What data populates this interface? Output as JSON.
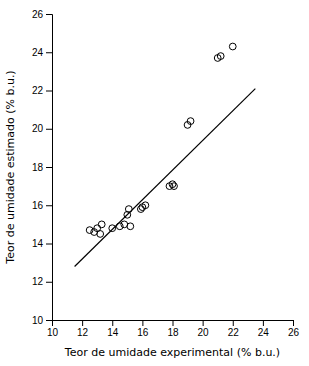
{
  "chart_data": {
    "type": "scatter",
    "xlabel": "Teor de umidade experimental (% b.u.)",
    "ylabel": "Teor de umidade estimado (% b.u.)",
    "xlim": [
      10,
      26
    ],
    "ylim": [
      10,
      26
    ],
    "xticks": [
      10,
      12,
      14,
      16,
      18,
      20,
      22,
      24,
      26
    ],
    "yticks": [
      10,
      12,
      14,
      16,
      18,
      20,
      22,
      24,
      26
    ],
    "grid": false,
    "series": [
      {
        "type": "scatter",
        "marker": "o",
        "color": "#000000",
        "x": [
          12.5,
          12.8,
          13.0,
          13.2,
          13.3,
          14.0,
          14.5,
          14.8,
          15.0,
          15.1,
          15.2,
          15.9,
          16.0,
          16.2,
          17.8,
          18.0,
          18.1,
          19.0,
          19.2,
          21.0,
          21.2,
          22.0
        ],
        "values": [
          14.7,
          14.6,
          14.8,
          14.5,
          15.0,
          14.8,
          14.9,
          15.0,
          15.5,
          15.8,
          14.9,
          15.8,
          15.9,
          16.0,
          17.0,
          17.1,
          17.0,
          20.2,
          20.4,
          23.7,
          23.8,
          24.3
        ]
      },
      {
        "type": "line",
        "line_style": "solid",
        "color": "#000000",
        "x": [
          11.5,
          23.5
        ],
        "values": [
          12.8,
          22.1
        ]
      }
    ]
  }
}
